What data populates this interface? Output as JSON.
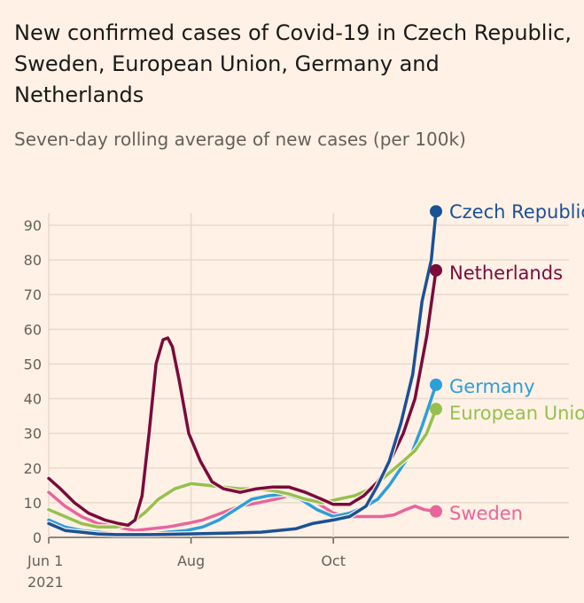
{
  "title": "New confirmed cases of Covid-19 in Czech Republic, Sweden, European Union, Germany and Netherlands",
  "subtitle": "Seven-day rolling average of new cases (per 100k)",
  "chart_data": {
    "type": "line",
    "title": "New confirmed cases of Covid-19 in Czech Republic, Sweden, European Union, Germany and Netherlands",
    "subtitle": "Seven-day rolling average of new cases (per 100k)",
    "xlabel": "",
    "ylabel": "",
    "xlim": [
      "2021-06-01",
      "2021-11-15"
    ],
    "ylim": [
      0,
      95
    ],
    "y_ticks": [
      0,
      10,
      20,
      30,
      40,
      50,
      60,
      70,
      80,
      90
    ],
    "x_ticks": [
      {
        "date": "2021-06-01",
        "label": "Jun 1",
        "sublabel": "2021"
      },
      {
        "date": "2021-08-01",
        "label": "Aug",
        "sublabel": ""
      },
      {
        "date": "2021-10-01",
        "label": "Oct",
        "sublabel": ""
      }
    ],
    "grid": true,
    "legend": "right (labels at line ends)",
    "series": [
      {
        "name": "Sweden",
        "color": "#e8659c",
        "label": "Sweden",
        "points": [
          [
            "2021-06-01",
            13
          ],
          [
            "2021-06-08",
            9
          ],
          [
            "2021-06-15",
            6
          ],
          [
            "2021-06-22",
            4
          ],
          [
            "2021-06-30",
            3
          ],
          [
            "2021-07-08",
            2
          ],
          [
            "2021-07-15",
            2.5
          ],
          [
            "2021-07-22",
            3
          ],
          [
            "2021-07-30",
            4
          ],
          [
            "2021-08-06",
            5
          ],
          [
            "2021-08-14",
            7
          ],
          [
            "2021-08-22",
            9
          ],
          [
            "2021-08-30",
            10
          ],
          [
            "2021-09-06",
            11
          ],
          [
            "2021-09-12",
            12
          ],
          [
            "2021-09-18",
            11
          ],
          [
            "2021-09-24",
            10
          ],
          [
            "2021-10-01",
            7
          ],
          [
            "2021-10-08",
            6
          ],
          [
            "2021-10-15",
            6
          ],
          [
            "2021-10-22",
            6
          ],
          [
            "2021-10-27",
            6.5
          ],
          [
            "2021-11-01",
            8
          ],
          [
            "2021-11-05",
            9
          ],
          [
            "2021-11-09",
            8
          ],
          [
            "2021-11-14",
            7.5
          ]
        ]
      },
      {
        "name": "Germany",
        "color": "#2d9fd9",
        "label": "Germany",
        "points": [
          [
            "2021-06-01",
            5
          ],
          [
            "2021-06-08",
            3
          ],
          [
            "2021-06-15",
            2
          ],
          [
            "2021-06-22",
            1.5
          ],
          [
            "2021-06-30",
            1
          ],
          [
            "2021-07-08",
            1
          ],
          [
            "2021-07-15",
            1
          ],
          [
            "2021-07-22",
            1.5
          ],
          [
            "2021-07-30",
            2
          ],
          [
            "2021-08-06",
            3
          ],
          [
            "2021-08-13",
            5
          ],
          [
            "2021-08-20",
            8
          ],
          [
            "2021-08-27",
            11
          ],
          [
            "2021-09-03",
            12
          ],
          [
            "2021-09-10",
            12.5
          ],
          [
            "2021-09-17",
            11
          ],
          [
            "2021-09-24",
            8
          ],
          [
            "2021-10-01",
            6
          ],
          [
            "2021-10-08",
            7
          ],
          [
            "2021-10-15",
            9
          ],
          [
            "2021-10-20",
            11
          ],
          [
            "2021-10-25",
            15
          ],
          [
            "2021-10-30",
            20
          ],
          [
            "2021-11-04",
            25
          ],
          [
            "2021-11-08",
            32
          ],
          [
            "2021-11-14",
            44
          ]
        ]
      },
      {
        "name": "European Union",
        "color": "#96c04d",
        "label": "European Union",
        "points": [
          [
            "2021-06-01",
            8
          ],
          [
            "2021-06-08",
            6
          ],
          [
            "2021-06-15",
            4
          ],
          [
            "2021-06-22",
            3
          ],
          [
            "2021-06-30",
            3
          ],
          [
            "2021-07-06",
            4
          ],
          [
            "2021-07-12",
            7
          ],
          [
            "2021-07-18",
            11
          ],
          [
            "2021-07-25",
            14
          ],
          [
            "2021-08-01",
            15.5
          ],
          [
            "2021-08-08",
            15
          ],
          [
            "2021-08-15",
            14.5
          ],
          [
            "2021-08-22",
            14
          ],
          [
            "2021-08-29",
            14
          ],
          [
            "2021-09-05",
            13.5
          ],
          [
            "2021-09-12",
            12.5
          ],
          [
            "2021-09-19",
            11
          ],
          [
            "2021-09-26",
            10
          ],
          [
            "2021-10-03",
            11
          ],
          [
            "2021-10-10",
            12
          ],
          [
            "2021-10-17",
            14
          ],
          [
            "2021-10-24",
            18
          ],
          [
            "2021-10-31",
            22
          ],
          [
            "2021-11-05",
            25
          ],
          [
            "2021-11-10",
            30
          ],
          [
            "2021-11-14",
            37
          ]
        ]
      },
      {
        "name": "Netherlands",
        "color": "#7a0b3b",
        "label": "Netherlands",
        "points": [
          [
            "2021-06-01",
            17
          ],
          [
            "2021-06-06",
            14
          ],
          [
            "2021-06-12",
            10
          ],
          [
            "2021-06-18",
            7
          ],
          [
            "2021-06-25",
            5
          ],
          [
            "2021-07-01",
            4
          ],
          [
            "2021-07-05",
            3.5
          ],
          [
            "2021-07-08",
            5
          ],
          [
            "2021-07-11",
            12
          ],
          [
            "2021-07-14",
            30
          ],
          [
            "2021-07-17",
            50
          ],
          [
            "2021-07-20",
            57
          ],
          [
            "2021-07-22",
            57.5
          ],
          [
            "2021-07-24",
            55
          ],
          [
            "2021-07-27",
            45
          ],
          [
            "2021-07-31",
            30
          ],
          [
            "2021-08-05",
            22
          ],
          [
            "2021-08-10",
            16
          ],
          [
            "2021-08-15",
            14
          ],
          [
            "2021-08-22",
            13
          ],
          [
            "2021-08-29",
            14
          ],
          [
            "2021-09-05",
            14.5
          ],
          [
            "2021-09-12",
            14.5
          ],
          [
            "2021-09-19",
            13
          ],
          [
            "2021-09-26",
            11
          ],
          [
            "2021-10-01",
            9.5
          ],
          [
            "2021-10-08",
            9.5
          ],
          [
            "2021-10-14",
            12
          ],
          [
            "2021-10-20",
            16
          ],
          [
            "2021-10-26",
            23
          ],
          [
            "2021-10-31",
            30
          ],
          [
            "2021-11-05",
            40
          ],
          [
            "2021-11-10",
            58
          ],
          [
            "2021-11-14",
            77
          ]
        ]
      },
      {
        "name": "Czech Republic",
        "color": "#1b5195",
        "label": "Czech Republic",
        "points": [
          [
            "2021-06-01",
            4
          ],
          [
            "2021-06-08",
            2
          ],
          [
            "2021-06-15",
            1.5
          ],
          [
            "2021-06-22",
            1
          ],
          [
            "2021-06-30",
            0.8
          ],
          [
            "2021-07-15",
            0.8
          ],
          [
            "2021-07-31",
            1
          ],
          [
            "2021-08-15",
            1.2
          ],
          [
            "2021-08-31",
            1.5
          ],
          [
            "2021-09-15",
            2.5
          ],
          [
            "2021-09-22",
            4
          ],
          [
            "2021-10-01",
            5
          ],
          [
            "2021-10-08",
            6
          ],
          [
            "2021-10-15",
            9
          ],
          [
            "2021-10-20",
            15
          ],
          [
            "2021-10-25",
            22
          ],
          [
            "2021-10-30",
            33
          ],
          [
            "2021-11-04",
            47
          ],
          [
            "2021-11-08",
            68
          ],
          [
            "2021-11-12",
            80
          ],
          [
            "2021-11-14",
            94
          ]
        ]
      }
    ]
  }
}
